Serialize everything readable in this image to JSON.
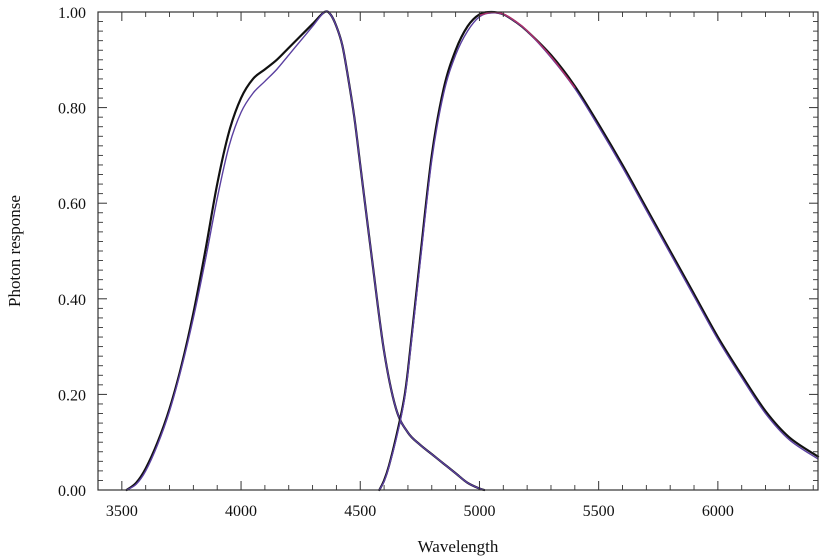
{
  "chart_data": {
    "type": "line",
    "title": "",
    "xlabel": "Wavelength",
    "ylabel": "Photon response",
    "xlim": [
      3400,
      6420
    ],
    "ylim": [
      0,
      1.0
    ],
    "xticks": [
      3500,
      4000,
      4500,
      5000,
      5500,
      6000
    ],
    "xtick_labels": [
      "3500",
      "4000",
      "4500",
      "5000",
      "5500",
      "6000"
    ],
    "yticks": [
      0,
      0.2,
      0.4,
      0.6,
      0.8,
      1.0
    ],
    "ytick_labels": [
      "0.00",
      "0.20",
      "0.40",
      "0.60",
      "0.80",
      "1.00"
    ],
    "grid": false,
    "colors": {
      "black": "#111111",
      "purple": "#5a3fa0",
      "magenta": "#b0306a",
      "axis": "#333333"
    },
    "series": [
      {
        "color": "#111111",
        "x": [
          3520,
          3560,
          3600,
          3650,
          3700,
          3750,
          3800,
          3850,
          3900,
          3950,
          4000,
          4050,
          4100,
          4150,
          4200,
          4250,
          4300,
          4350,
          4375,
          4400,
          4425,
          4450,
          4475,
          4500,
          4550,
          4600,
          4650,
          4700,
          4750,
          4800,
          4850,
          4900,
          4950,
          5000,
          5020
        ],
        "y": [
          0.0,
          0.015,
          0.045,
          0.1,
          0.17,
          0.26,
          0.37,
          0.5,
          0.64,
          0.75,
          0.82,
          0.86,
          0.88,
          0.9,
          0.925,
          0.95,
          0.975,
          1.0,
          0.995,
          0.97,
          0.93,
          0.86,
          0.78,
          0.68,
          0.48,
          0.29,
          0.17,
          0.12,
          0.095,
          0.075,
          0.055,
          0.035,
          0.015,
          0.003,
          0.0
        ]
      },
      {
        "color": "#5a3fa0",
        "x": [
          3520,
          3560,
          3600,
          3650,
          3700,
          3750,
          3800,
          3850,
          3900,
          3950,
          4000,
          4050,
          4100,
          4150,
          4200,
          4250,
          4300,
          4350,
          4375,
          4400,
          4425,
          4450,
          4475,
          4500,
          4550,
          4600,
          4650,
          4700,
          4750,
          4800,
          4850,
          4900,
          4950,
          5000,
          5020
        ],
        "y": [
          0.0,
          0.012,
          0.04,
          0.095,
          0.165,
          0.255,
          0.36,
          0.48,
          0.61,
          0.72,
          0.79,
          0.83,
          0.855,
          0.88,
          0.91,
          0.94,
          0.97,
          1.0,
          0.995,
          0.97,
          0.93,
          0.86,
          0.78,
          0.68,
          0.48,
          0.29,
          0.17,
          0.12,
          0.095,
          0.075,
          0.055,
          0.035,
          0.015,
          0.003,
          0.0
        ]
      },
      {
        "color": "#111111",
        "x": [
          4580,
          4600,
          4620,
          4650,
          4680,
          4700,
          4750,
          4800,
          4850,
          4900,
          4950,
          5000,
          5050,
          5100,
          5150,
          5200,
          5300,
          5400,
          5500,
          5600,
          5700,
          5800,
          5900,
          6000,
          6100,
          6200,
          6300,
          6420
        ],
        "y": [
          0.0,
          0.02,
          0.05,
          0.11,
          0.18,
          0.25,
          0.48,
          0.7,
          0.84,
          0.92,
          0.97,
          0.995,
          1.0,
          0.995,
          0.98,
          0.96,
          0.91,
          0.845,
          0.765,
          0.68,
          0.59,
          0.5,
          0.41,
          0.32,
          0.24,
          0.165,
          0.11,
          0.07
        ]
      },
      {
        "color": "#5a3fa0",
        "x": [
          4580,
          4600,
          4620,
          4650,
          4680,
          4700,
          4750,
          4800,
          4850,
          4900,
          4950,
          5000,
          5050,
          5100,
          5150,
          5200,
          5300,
          5400,
          5500,
          5600,
          5700,
          5800,
          5900,
          6000,
          6100,
          6200,
          6300,
          6420
        ],
        "y": [
          0.0,
          0.018,
          0.048,
          0.105,
          0.175,
          0.245,
          0.47,
          0.69,
          0.83,
          0.91,
          0.96,
          0.99,
          0.998,
          0.995,
          0.98,
          0.96,
          0.905,
          0.84,
          0.76,
          0.675,
          0.585,
          0.495,
          0.405,
          0.315,
          0.235,
          0.16,
          0.105,
          0.065
        ]
      },
      {
        "color": "#b0306a",
        "x": [
          5000,
          5050,
          5100,
          5150,
          5200,
          5300,
          5400
        ],
        "y": [
          0.993,
          0.999,
          0.996,
          0.981,
          0.961,
          0.907,
          0.842
        ]
      }
    ]
  }
}
